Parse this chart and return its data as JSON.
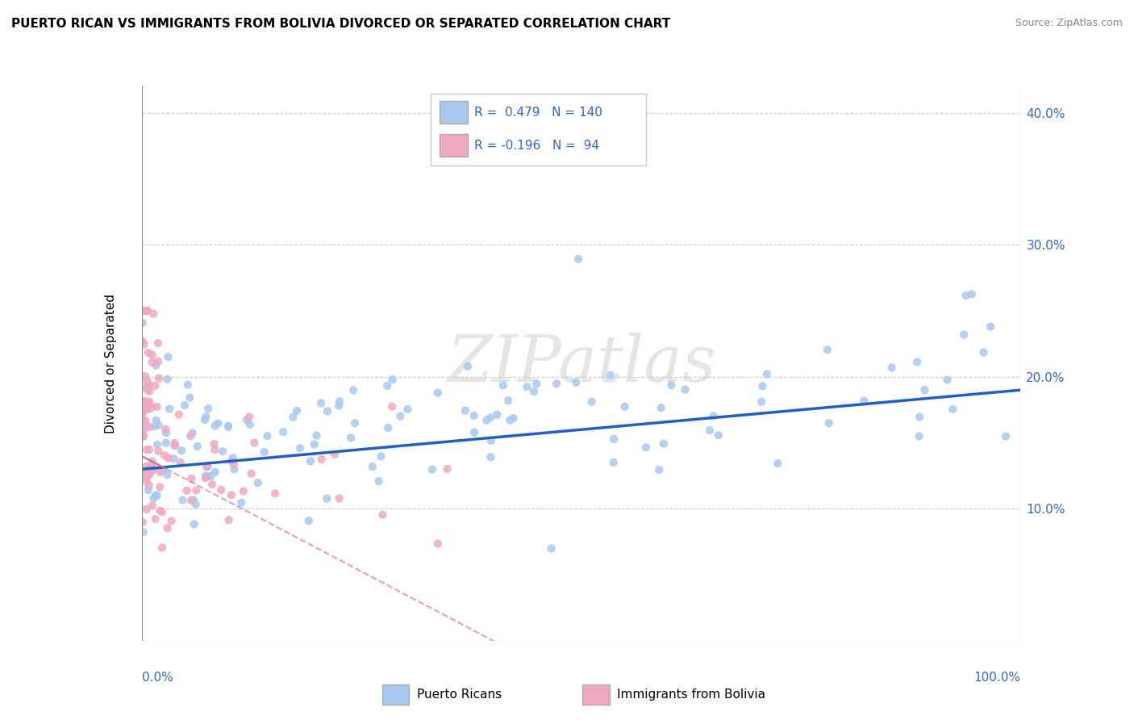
{
  "title": "PUERTO RICAN VS IMMIGRANTS FROM BOLIVIA DIVORCED OR SEPARATED CORRELATION CHART",
  "source": "Source: ZipAtlas.com",
  "ylabel": "Divorced or Separated",
  "legend_label1": "Puerto Ricans",
  "legend_label2": "Immigrants from Bolivia",
  "R1": 0.479,
  "N1": 140,
  "R2": -0.196,
  "N2": 94,
  "blue_color": "#a8c8f0",
  "pink_color": "#f0a8c0",
  "blue_line_color": "#2060c0",
  "pink_line_color": "#e06080",
  "background_color": "#ffffff",
  "ytick_vals": [
    0.0,
    0.1,
    0.2,
    0.3,
    0.4
  ],
  "ytick_labels": [
    "",
    "10.0%",
    "20.0%",
    "30.0%",
    "40.0%"
  ],
  "blue_seed": 42,
  "pink_seed": 77
}
